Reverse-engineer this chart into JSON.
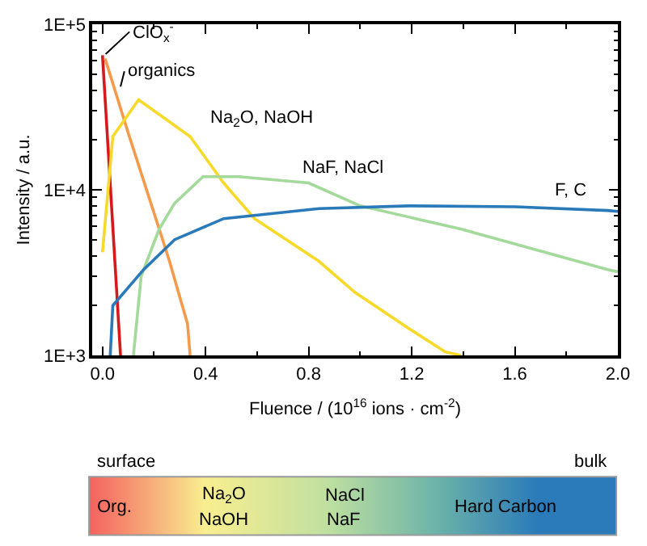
{
  "chart_data": {
    "type": "line",
    "xlabel": "Fluence / (10$^{16}$ ions · cm$^{-2}$)",
    "ylabel": "Intensity / a.u.",
    "series": [
      {
        "name": "ClO$_{x}$$^{-}$",
        "color": "#d7191c",
        "x": [
          0.0,
          0.07
        ],
        "values": [
          65000,
          1000
        ]
      },
      {
        "name": "organics",
        "color": "#f59a4a",
        "x": [
          0.01,
          0.1,
          0.22,
          0.26,
          0.33,
          0.34
        ],
        "values": [
          62000,
          22000,
          5800,
          3700,
          1550,
          1000
        ]
      },
      {
        "name": "Na$_{2}$O, NaOH",
        "color": "#f7d92a",
        "x": [
          0.0,
          0.04,
          0.14,
          0.34,
          0.47,
          0.59,
          0.84,
          0.98,
          1.19,
          1.33,
          1.39
        ],
        "values": [
          4200,
          21000,
          35000,
          21000,
          11000,
          6700,
          3700,
          2400,
          1450,
          1050,
          1000
        ]
      },
      {
        "name": "NaF, NaCl",
        "color": "#a3d99a",
        "x": [
          0.12,
          0.15,
          0.22,
          0.28,
          0.39,
          0.53,
          0.8,
          1.0,
          1.39,
          1.96,
          2.0
        ],
        "values": [
          1000,
          3000,
          5800,
          8300,
          12000,
          12000,
          11000,
          8000,
          5800,
          3300,
          3200
        ]
      },
      {
        "name": "F, C",
        "color": "#2a7ab9",
        "x": [
          0.03,
          0.04,
          0.16,
          0.28,
          0.47,
          0.84,
          1.19,
          1.6,
          1.96,
          2.0
        ],
        "values": [
          1000,
          2000,
          3300,
          5000,
          6700,
          7700,
          8000,
          7900,
          7500,
          7400
        ]
      }
    ],
    "xlim": [
      -0.04,
      2.0
    ],
    "xticks": [
      {
        "value": 0,
        "label": "0.0"
      },
      0.4,
      0.8,
      1.2,
      1.6,
      {
        "value": 2,
        "label": "2.0"
      }
    ],
    "ylim": [
      1000,
      100000
    ],
    "yticks": [
      {
        "value": 1000,
        "label": "1E+3"
      },
      {
        "value": 10000,
        "label": "1E+4"
      },
      {
        "value": 100000,
        "label": "1E+5"
      }
    ],
    "log": "y",
    "legend": false,
    "marker": "none",
    "line_style": "solid",
    "annotations": [
      "surface",
      "bulk",
      "Org.",
      "Na$_{2}$O",
      "NaOH",
      "NaCl",
      "NaF",
      "Hard Carbon"
    ]
  }
}
